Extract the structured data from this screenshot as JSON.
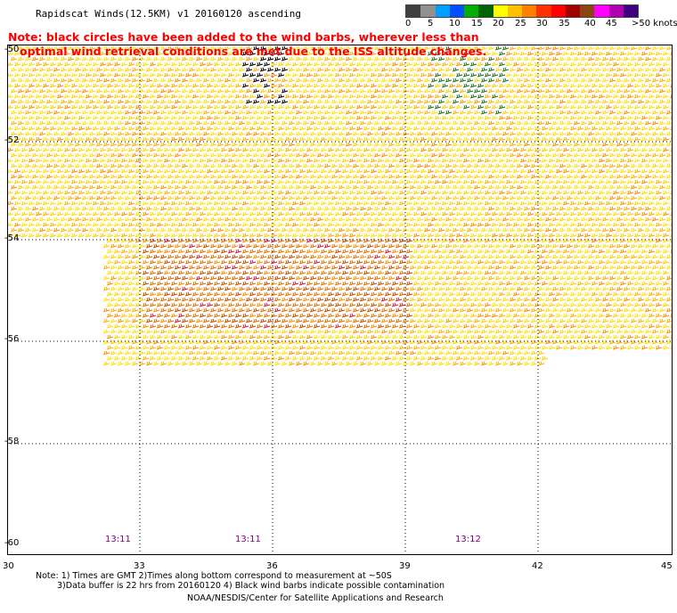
{
  "header": {
    "title": "Rapidscat Winds(12.5KM) v1 20160120 ascending"
  },
  "note": {
    "line1": "Note: black circles have been added to the wind barbs, wherever less than",
    "line2": "optimal wind retrieval conditions are met due to the ISS altitude changes."
  },
  "legend": {
    "colors": [
      "#404040",
      "#909090",
      "#00a0ff",
      "#0050ff",
      "#00b000",
      "#006400",
      "#ffff00",
      "#ffc000",
      "#ff8000",
      "#ff3000",
      "#ff0000",
      "#a00000",
      "#8b4513",
      "#ff00ff",
      "#b000b0",
      "#400080"
    ],
    "labels": [
      "0",
      "5",
      "10",
      "15",
      "20",
      "25",
      "30",
      "35",
      "40",
      "45",
      ">50 knots"
    ]
  },
  "map": {
    "lat_labels": [
      "-50",
      "-52",
      "-54",
      "-56",
      "-58",
      "-60"
    ],
    "lon_labels": [
      "30",
      "33",
      "36",
      "39",
      "42",
      "45"
    ],
    "times": [
      "13:11",
      "13:11",
      "13:12"
    ]
  },
  "footer": {
    "line1": "Note: 1) Times are GMT 2)Times along bottom correspond to measurement at ~50S",
    "line2": "3)Data buffer is 22 hrs from 20160120 4) Black wind barbs indicate possible contamination",
    "line3": "NOAA/NESDIS/Center for Satellite Applications and Research"
  }
}
